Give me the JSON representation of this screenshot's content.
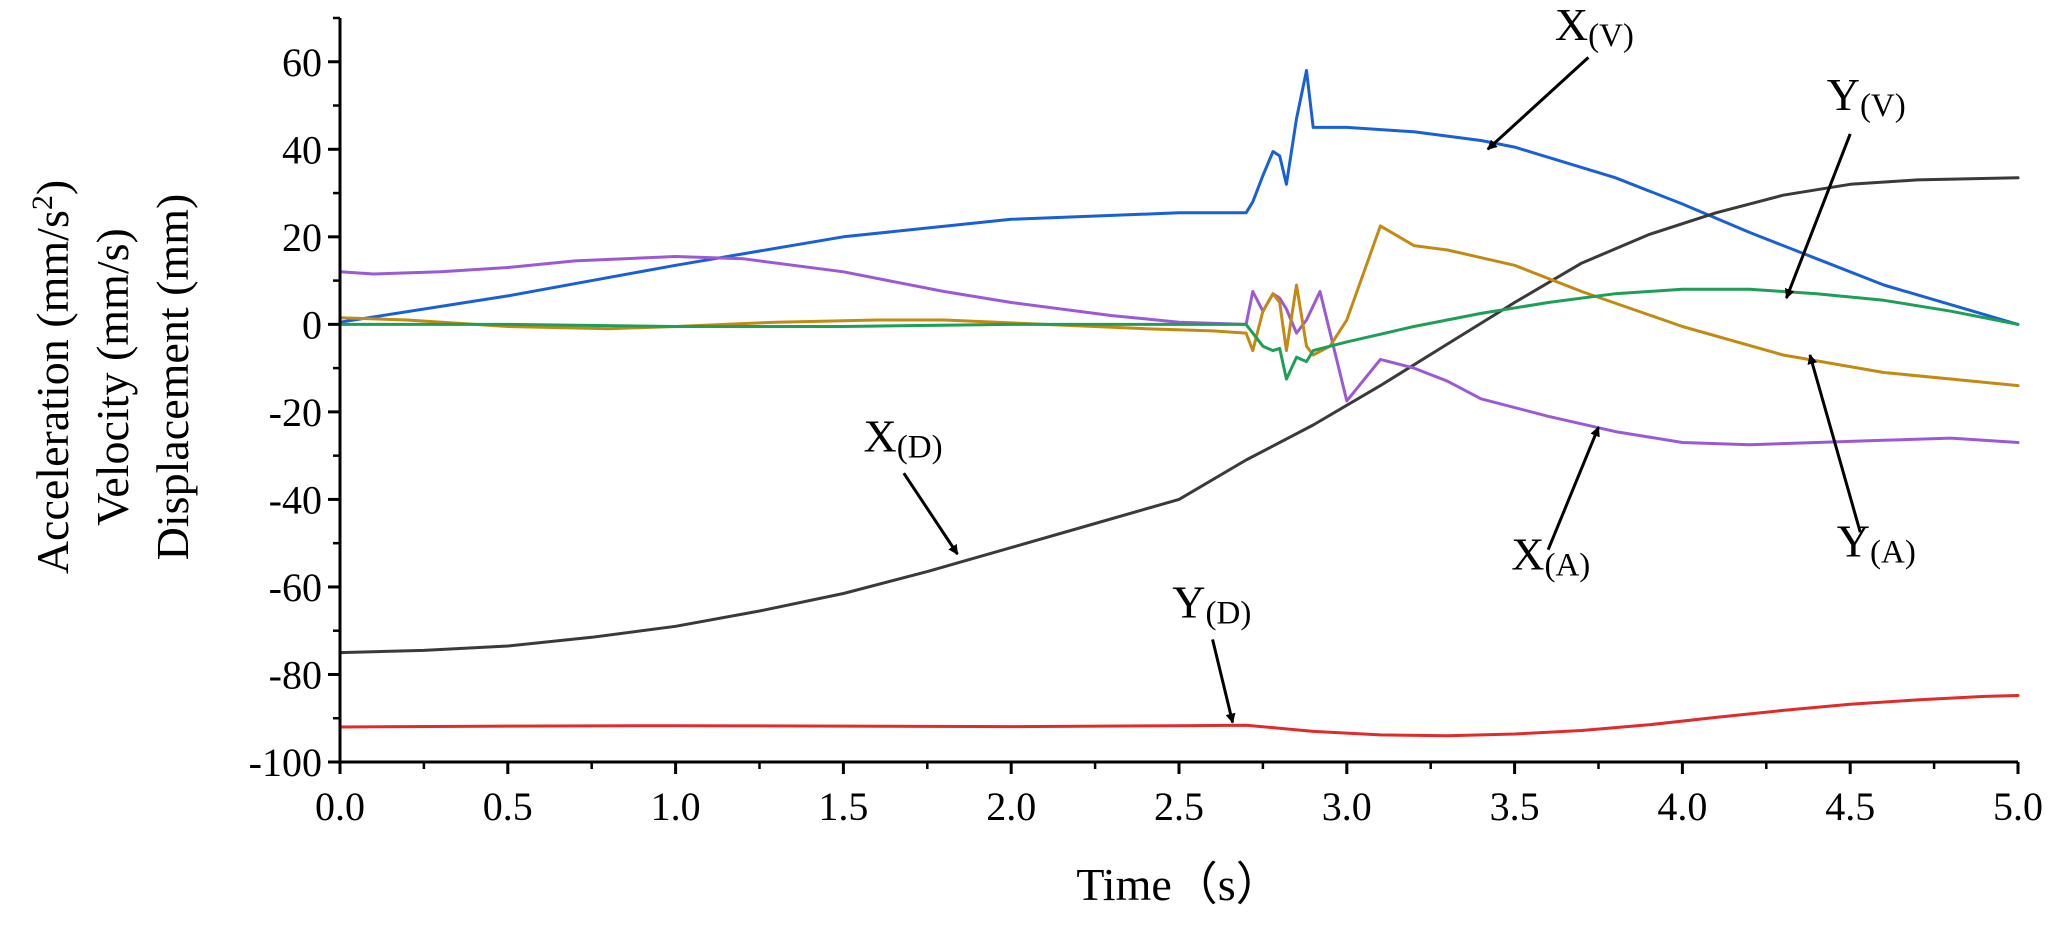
{
  "chart_data": {
    "type": "line",
    "title": "",
    "xlabel": "Time（s）",
    "ylabel_lines": [
      "Acceleration (mm/s",
      "Velocity (mm/s)",
      "Displacement (mm)"
    ],
    "ylabel_superscript": "2",
    "ylabel_close": ")",
    "xlim": [
      0,
      5
    ],
    "ylim": [
      -100,
      70
    ],
    "x_ticks": [
      "0.0",
      "0.5",
      "1.0",
      "1.5",
      "2.0",
      "2.5",
      "3.0",
      "3.5",
      "4.0",
      "4.5",
      "5.0"
    ],
    "x_tick_values": [
      0,
      0.5,
      1,
      1.5,
      2,
      2.5,
      3,
      3.5,
      4,
      4.5,
      5
    ],
    "y_ticks": [
      "60",
      "40",
      "20",
      "0",
      "-20",
      "-40",
      "-60",
      "-80",
      "-100"
    ],
    "y_tick_values": [
      60,
      40,
      20,
      0,
      -20,
      -40,
      -60,
      -80,
      -100
    ],
    "grid": false,
    "legend": "none",
    "series": [
      {
        "name": "X(V)",
        "color": "#1760d6",
        "x": [
          0,
          0.5,
          1.0,
          1.5,
          2.0,
          2.5,
          2.7,
          2.72,
          2.75,
          2.78,
          2.8,
          2.82,
          2.85,
          2.88,
          2.9,
          3.0,
          3.2,
          3.4,
          3.5,
          3.8,
          4.0,
          4.2,
          4.4,
          4.6,
          4.8,
          5.0
        ],
        "values": [
          0.5,
          6.5,
          13.5,
          20,
          24,
          25.5,
          25.5,
          28,
          34,
          39.5,
          38.5,
          32,
          47,
          58,
          45,
          45,
          44,
          42,
          40.5,
          33.5,
          27.5,
          21,
          15,
          9,
          4.5,
          0
        ]
      },
      {
        "name": "X(D)",
        "color": "#3a3a3a",
        "x": [
          0,
          0.25,
          0.5,
          0.75,
          1.0,
          1.25,
          1.5,
          1.75,
          2.0,
          2.25,
          2.5,
          2.7,
          2.9,
          3.1,
          3.3,
          3.5,
          3.7,
          3.9,
          4.1,
          4.3,
          4.5,
          4.7,
          5.0
        ],
        "values": [
          -75,
          -74.5,
          -73.5,
          -71.5,
          -69,
          -65.5,
          -61.5,
          -56.5,
          -51,
          -45.5,
          -40,
          -31,
          -23,
          -14,
          -4.5,
          5,
          14,
          20.5,
          25.5,
          29.5,
          32,
          33,
          33.5
        ]
      },
      {
        "name": "X(A)",
        "color": "#9b59d6",
        "x": [
          0,
          0.1,
          0.3,
          0.5,
          0.7,
          1.0,
          1.2,
          1.5,
          1.8,
          2.0,
          2.3,
          2.5,
          2.7,
          2.72,
          2.75,
          2.78,
          2.8,
          2.82,
          2.85,
          2.88,
          2.92,
          3.0,
          3.1,
          3.2,
          3.3,
          3.4,
          3.6,
          3.8,
          4.0,
          4.2,
          4.4,
          4.6,
          4.8,
          5.0
        ],
        "values": [
          12,
          11.5,
          12,
          13,
          14.5,
          15.5,
          15,
          12,
          7.5,
          5,
          2,
          0.5,
          0,
          7.5,
          3,
          7,
          6,
          3.5,
          -2,
          1,
          7.5,
          -17.5,
          -8,
          -10,
          -13,
          -17,
          -21,
          -24.5,
          -27,
          -27.5,
          -27,
          -26.5,
          -26,
          -27
        ]
      },
      {
        "name": "Y(A)",
        "color": "#c38a12",
        "x": [
          0,
          0.2,
          0.5,
          0.8,
          1.0,
          1.3,
          1.6,
          1.8,
          2.1,
          2.4,
          2.6,
          2.7,
          2.72,
          2.75,
          2.78,
          2.8,
          2.82,
          2.85,
          2.88,
          2.9,
          2.95,
          3.0,
          3.1,
          3.2,
          3.3,
          3.5,
          3.7,
          4.0,
          4.3,
          4.6,
          5.0
        ],
        "values": [
          1.5,
          1,
          -0.5,
          -1,
          -0.5,
          0.5,
          1,
          1,
          0,
          -1,
          -1.5,
          -2,
          -6,
          3,
          7,
          5,
          -6,
          9,
          -5,
          -7,
          -5,
          1,
          22.5,
          18,
          17,
          13.5,
          7.5,
          -0.5,
          -7,
          -11,
          -14
        ]
      },
      {
        "name": "Y(V)",
        "color": "#1f9e57",
        "x": [
          0,
          0.5,
          1.0,
          1.5,
          2.0,
          2.5,
          2.7,
          2.75,
          2.78,
          2.8,
          2.82,
          2.85,
          2.88,
          2.9,
          2.95,
          3.0,
          3.2,
          3.4,
          3.6,
          3.8,
          4.0,
          4.2,
          4.4,
          4.6,
          4.8,
          5.0
        ],
        "values": [
          0,
          0,
          -0.5,
          -0.5,
          0,
          0,
          0,
          -5,
          -6,
          -5.5,
          -12.5,
          -7.5,
          -8.5,
          -6,
          -5,
          -4,
          -0.5,
          2.5,
          5,
          7,
          8,
          8,
          7,
          5.5,
          3,
          0
        ]
      },
      {
        "name": "Y(D)",
        "color": "#e02b2b",
        "x": [
          0,
          0.5,
          1.0,
          1.5,
          2.0,
          2.5,
          2.7,
          2.9,
          3.1,
          3.3,
          3.5,
          3.7,
          3.9,
          4.1,
          4.3,
          4.5,
          4.7,
          4.9,
          5.0
        ],
        "values": [
          -92,
          -91.8,
          -91.7,
          -91.8,
          -91.9,
          -91.7,
          -91.6,
          -93,
          -93.8,
          -94,
          -93.6,
          -92.8,
          -91.5,
          -89.8,
          -88.2,
          -86.8,
          -85.8,
          -85,
          -84.8
        ]
      }
    ],
    "annotations": [
      {
        "main": "X",
        "sub": "(V)",
        "text_x": 3.62,
        "text_y": 65,
        "arrow_from": [
          3.72,
          61
        ],
        "arrow_to": [
          3.42,
          40
        ]
      },
      {
        "main": "Y",
        "sub": "(V)",
        "text_x": 4.43,
        "text_y": 49,
        "arrow_from": [
          4.5,
          43.5
        ],
        "arrow_to": [
          4.31,
          6
        ]
      },
      {
        "main": "X",
        "sub": "(D)",
        "text_x": 1.56,
        "text_y": -29,
        "arrow_from": [
          1.68,
          -34
        ],
        "arrow_to": [
          1.84,
          -52.5
        ]
      },
      {
        "main": "X",
        "sub": "(A)",
        "text_x": 3.49,
        "text_y": -56,
        "arrow_from": [
          3.6,
          -51.5
        ],
        "arrow_to": [
          3.75,
          -23.5
        ]
      },
      {
        "main": "Y",
        "sub": "(A)",
        "text_x": 4.46,
        "text_y": -53,
        "arrow_from": [
          4.53,
          -47.5
        ],
        "arrow_to": [
          4.38,
          -7
        ]
      },
      {
        "main": "Y",
        "sub": "(D)",
        "text_x": 2.48,
        "text_y": -67,
        "arrow_from": [
          2.6,
          -72
        ],
        "arrow_to": [
          2.66,
          -91
        ]
      }
    ]
  }
}
